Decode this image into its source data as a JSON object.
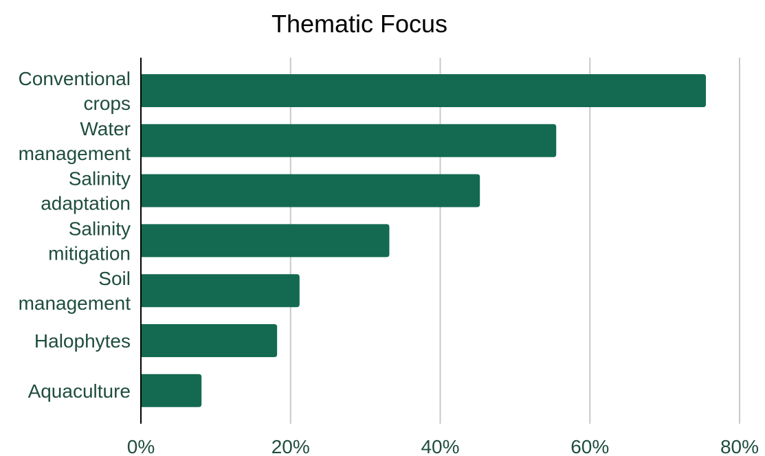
{
  "chart_data": {
    "type": "bar",
    "orientation": "horizontal",
    "title": "Thematic Focus",
    "xlabel": "",
    "ylabel": "",
    "categories": [
      [
        "Conventional",
        "crops"
      ],
      [
        "Water",
        "management"
      ],
      [
        "Salinity",
        "adaptation"
      ],
      [
        "Salinity",
        "mitigation"
      ],
      [
        "Soil",
        "management"
      ],
      [
        "Halophytes"
      ],
      [
        "Aquaculture"
      ]
    ],
    "values": [
      75.5,
      55.5,
      45.3,
      33.2,
      21.2,
      18.2,
      8.1
    ],
    "value_unit": "%",
    "xlim": [
      0,
      80
    ],
    "x_ticks": [
      "0%",
      "20%",
      "40%",
      "60%",
      "80%"
    ],
    "grid": "vertical",
    "legend": "none",
    "colors": {
      "bar": "#136a50",
      "label_text": "#1f4d3f",
      "grid": "#c8c8c8",
      "axis": "#000000",
      "title": "#000000"
    }
  }
}
